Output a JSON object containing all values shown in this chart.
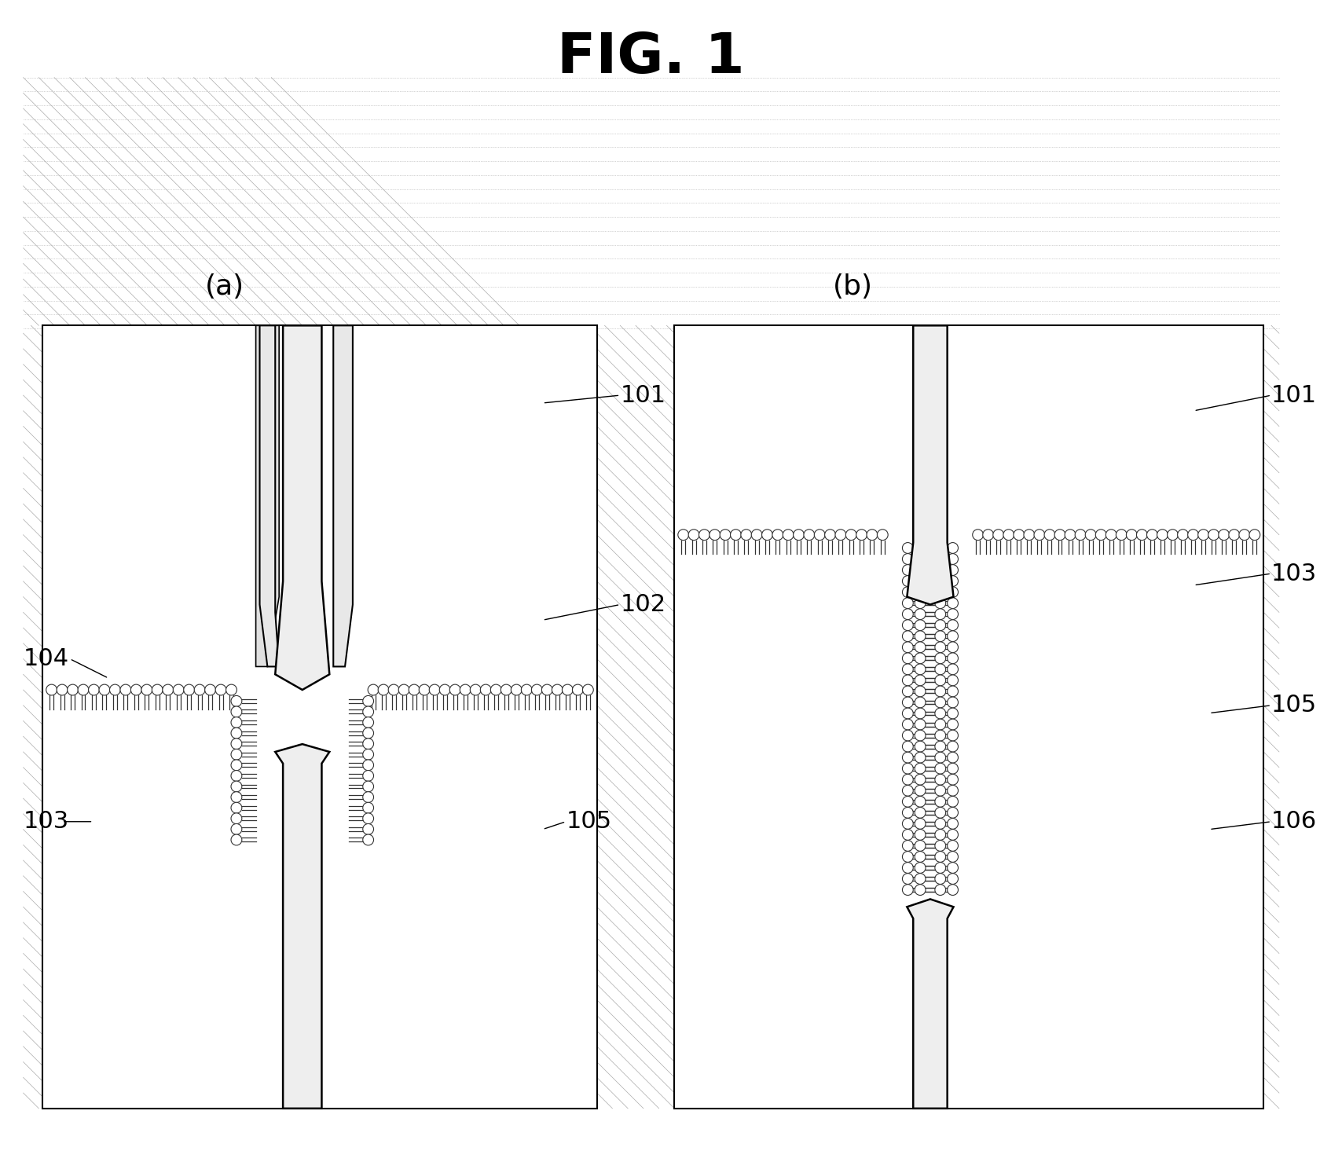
{
  "title": "FIG. 1",
  "background_color": "#ffffff",
  "hatching_color": "#cccccc",
  "label_a": "(a)",
  "label_b": "(b)",
  "labels": [
    "101",
    "102",
    "103",
    "104",
    "105",
    "106"
  ],
  "dotted_bg_color": "#d8d8e8",
  "membrane_color": "#333333",
  "wall_color": "#888888"
}
